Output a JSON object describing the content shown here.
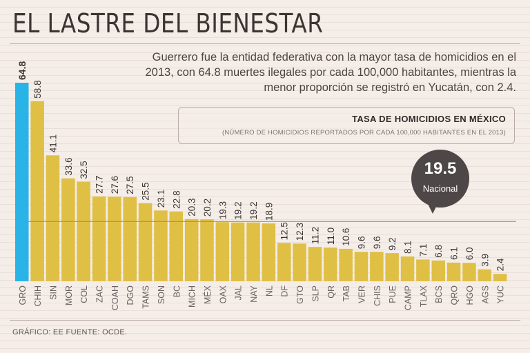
{
  "title": "EL LASTRE DEL BIENESTAR",
  "description": "Guerrero fue la entidad federativa con la mayor tasa de homicidios en el 2013, con 64.8 muertes ilegales por cada 100,000 habitantes, mientras la menor proporción se registró en Yucatán, con 2.4.",
  "legend": {
    "title": "TASA DE HOMICIDIOS EN MÉXICO",
    "subtitle": "(NÚMERO DE HOMICIDIOS REPORTADOS POR CADA 100,000 HABITANTES EN EL 2013)"
  },
  "national": {
    "value": "19.5",
    "label": "Nacional"
  },
  "footer": "GRÁFICO: EE FUENTE: OCDE.",
  "colors": {
    "bar": "#e0bf45",
    "highlight": "#29b3e6",
    "reference": "#8fa52e",
    "text": "#3a3533"
  },
  "chart_data": {
    "type": "bar",
    "title": "TASA DE HOMICIDIOS EN MÉXICO",
    "categories": [
      "GRO",
      "CHIH",
      "SIN",
      "MOR",
      "COL",
      "ZAC",
      "COAH",
      "DGO",
      "TAMS",
      "SON",
      "BC",
      "MICH",
      "MÉX",
      "OAX",
      "JAL",
      "NAY",
      "NL",
      "DF",
      "GTO",
      "SLP",
      "QR",
      "TAB",
      "VER",
      "CHIS",
      "PUE",
      "CAMP",
      "TLAX",
      "BCS",
      "QRO",
      "HGO",
      "AGS",
      "YUC"
    ],
    "values": [
      64.8,
      58.8,
      41.1,
      33.6,
      32.5,
      27.7,
      27.6,
      27.5,
      25.5,
      23.1,
      22.8,
      20.3,
      20.2,
      19.3,
      19.2,
      19.2,
      18.9,
      12.5,
      12.3,
      11.2,
      11.0,
      10.6,
      9.6,
      9.6,
      9.2,
      8.1,
      7.1,
      6.8,
      6.1,
      6.0,
      3.9,
      2.4
    ],
    "value_labels": [
      "64.8",
      "58.8",
      "41.1",
      "33.6",
      "32.5",
      "27.7",
      "27.6",
      "27.5",
      "25.5",
      "23.1",
      "22.8",
      "20.3",
      "20.2",
      "19.3",
      "19.2",
      "19.2",
      "18.9",
      "12.5",
      "12.3",
      "11.2",
      "11.0",
      "10.6",
      "9.6",
      "9.6",
      "9.2",
      "8.1",
      "7.1",
      "6.8",
      "6.1",
      "6.0",
      "3.9",
      "2.4"
    ],
    "highlight_category": "GRO",
    "reference_line": 19.5,
    "ylim": [
      0,
      66
    ],
    "xlabel": "",
    "ylabel": ""
  }
}
